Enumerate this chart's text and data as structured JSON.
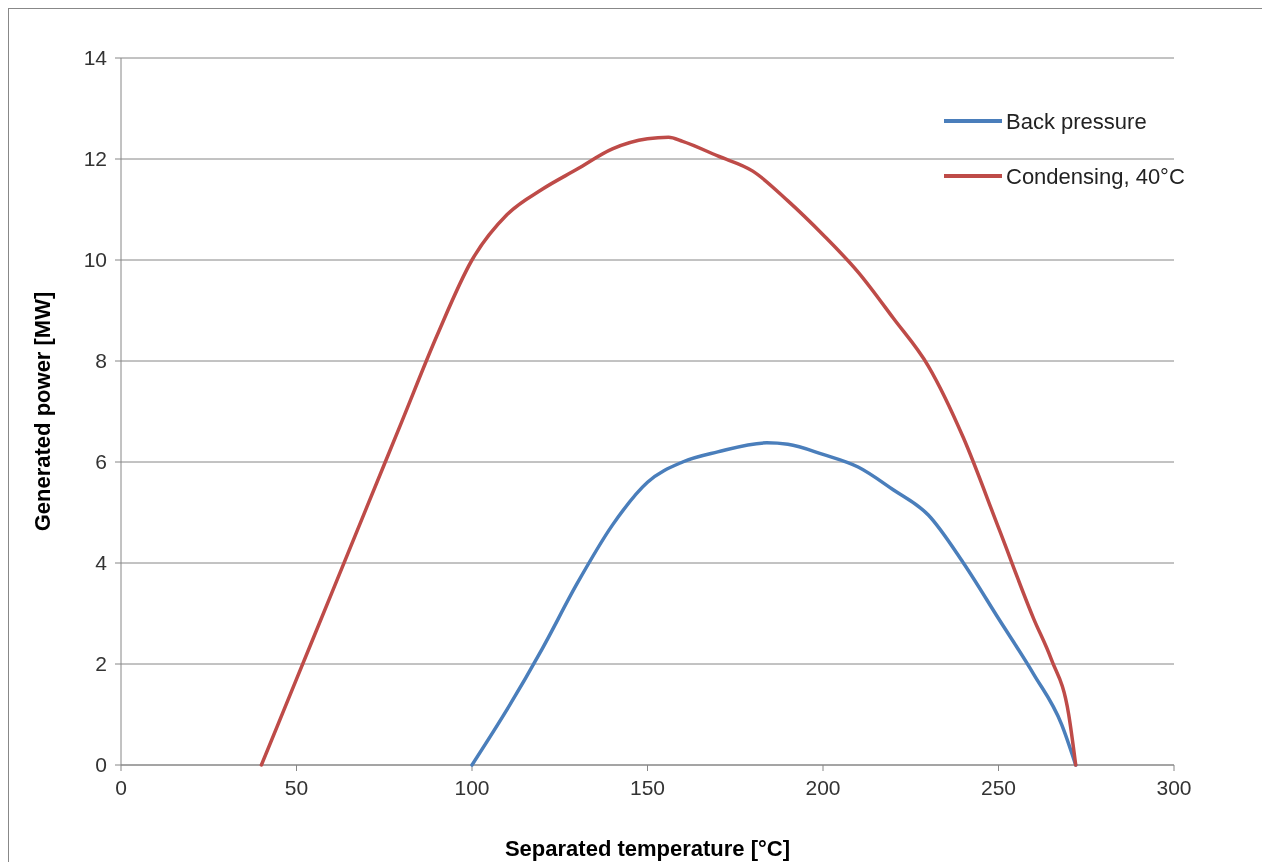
{
  "chart_data": {
    "type": "line",
    "xlabel": "Separated temperature [°C]",
    "ylabel": "Generated power [MW]",
    "xlim": [
      0,
      300
    ],
    "xticks": [
      0,
      50,
      100,
      150,
      200,
      250,
      300
    ],
    "ylim": [
      0,
      14
    ],
    "yticks": [
      0,
      2,
      4,
      6,
      8,
      10,
      12,
      14
    ],
    "grid": "y",
    "legend": "top right",
    "marker": "none",
    "line_style": "solid",
    "series": [
      {
        "name": "Back pressure",
        "color": "#4a7ebb",
        "x": [
          100,
          110,
          120,
          130,
          140,
          150,
          160,
          170,
          184,
          190,
          200,
          210,
          220,
          230,
          240,
          250,
          260,
          268,
          272
        ],
        "values": [
          0,
          1.1,
          2.3,
          3.6,
          4.75,
          5.6,
          6.0,
          6.2,
          6.38,
          6.35,
          6.15,
          5.9,
          5.45,
          4.95,
          4.0,
          2.9,
          1.8,
          0.8,
          0
        ]
      },
      {
        "name": "Condensing, 40°C",
        "color": "#be4b48",
        "x": [
          40,
          50,
          60,
          70,
          80,
          90,
          100,
          110,
          120,
          130,
          140,
          150,
          156,
          160,
          170,
          180,
          190,
          200,
          210,
          220,
          230,
          240,
          250,
          260,
          265,
          270,
          272
        ],
        "values": [
          0,
          1.7,
          3.4,
          5.1,
          6.8,
          8.5,
          10.0,
          10.9,
          11.4,
          11.8,
          12.2,
          12.4,
          12.43,
          12.35,
          12.06,
          11.76,
          11.17,
          10.5,
          9.76,
          8.85,
          7.9,
          6.48,
          4.7,
          2.9,
          2.1,
          1.0,
          0
        ]
      }
    ]
  }
}
